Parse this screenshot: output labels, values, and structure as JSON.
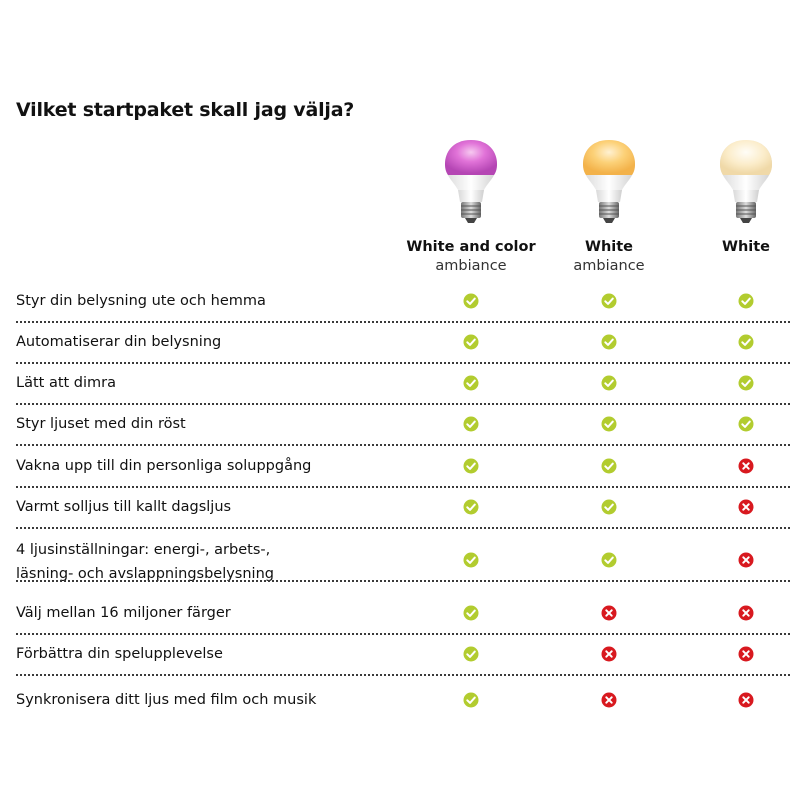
{
  "page": {
    "title": "Vilket startpaket skall jag välja?"
  },
  "products": [
    {
      "name": "White and color",
      "subtitle": "ambiance",
      "bulb": "color-bulb"
    },
    {
      "name": "White",
      "subtitle": "ambiance",
      "bulb": "warm-white-bulb"
    },
    {
      "name": "White",
      "subtitle": "",
      "bulb": "white-bulb"
    }
  ],
  "colors": {
    "check": "#b2cc2f",
    "cross": "#d8191f",
    "separator": "#3a3a3a"
  },
  "rows": [
    {
      "label": "Styr din belysning ute och hemma",
      "values": [
        true,
        true,
        true
      ]
    },
    {
      "label": "Automatiserar din belysning",
      "values": [
        true,
        true,
        true
      ]
    },
    {
      "label": "Lätt att dimra",
      "values": [
        true,
        true,
        true
      ]
    },
    {
      "label": "Styr ljuset med din röst",
      "values": [
        true,
        true,
        true
      ]
    },
    {
      "label": "Vakna upp till din personliga soluppgång",
      "values": [
        true,
        true,
        false
      ]
    },
    {
      "label": "Varmt solljus till kallt dagsljus",
      "values": [
        true,
        true,
        false
      ]
    },
    {
      "label": "4 ljusinställningar: energi-, arbets-,",
      "label2": "läsning- och avslappningsbelysning",
      "values": [
        true,
        true,
        false
      ]
    },
    {
      "label": "Välj mellan 16 miljoner färger",
      "values": [
        true,
        false,
        false
      ]
    },
    {
      "label": "Förbättra din spelupplevelse",
      "values": [
        true,
        false,
        false
      ]
    },
    {
      "label": "Synkronisera ditt ljus med film och musik",
      "values": [
        true,
        false,
        false
      ]
    }
  ]
}
